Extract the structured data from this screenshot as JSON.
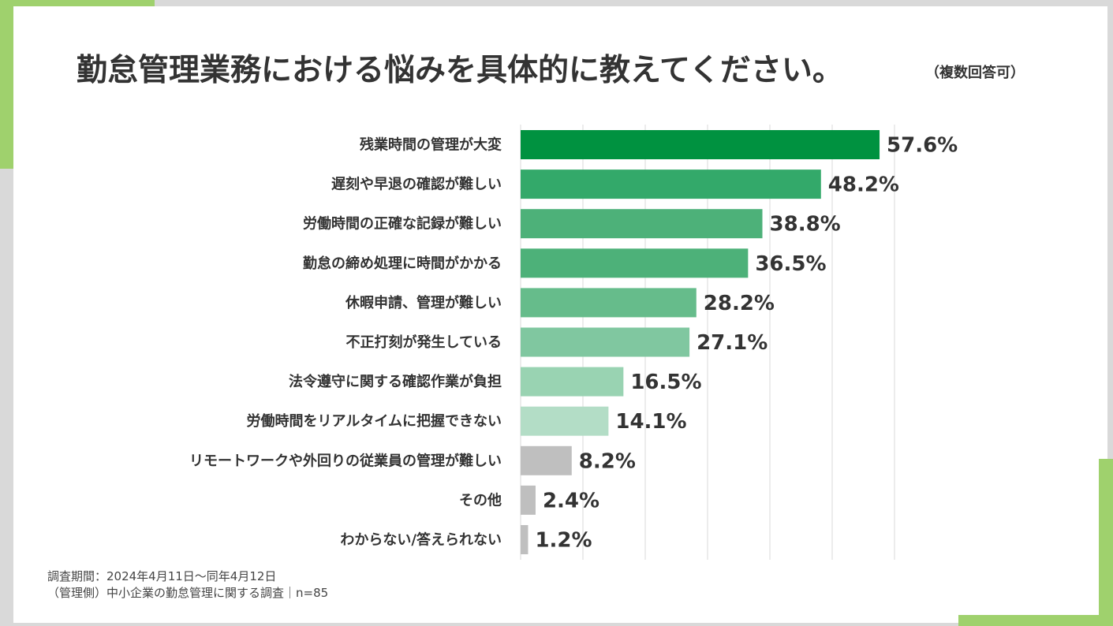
{
  "title": "勤怠管理業務における悩みを具体的に教えてください。",
  "subtitle": "（複数回答可）",
  "footnote": {
    "line1": "調査期間：2024年4月11日～同年4月12日",
    "line2": "（管理側）中小企業の勤怠管理に関する調査｜n=85"
  },
  "colors": {
    "accent": "#9fd16d",
    "bar_grey": "#bfbfbf",
    "bar_greens": [
      "#009240",
      "#33a96a",
      "#4db179",
      "#4db179",
      "#66bc8b",
      "#80c7a0",
      "#99d3b2",
      "#b3ddc6"
    ]
  },
  "chart_data": {
    "type": "bar",
    "orientation": "horizontal",
    "categories": [
      "残業時間の管理が大変",
      "遅刻や早退の確認が難しい",
      "労働時間の正確な記録が難しい",
      "勤怠の締め処理に時間がかかる",
      "休暇申請、管理が難しい",
      "不正打刻が発生している",
      "法令遵守に関する確認作業が負担",
      "労働時間をリアルタイムに把握できない",
      "リモートワークや外回りの従業員の管理が難しい",
      "その他",
      "わからない/答えられない"
    ],
    "values": [
      57.6,
      48.2,
      38.8,
      36.5,
      28.2,
      27.1,
      16.5,
      14.1,
      8.2,
      2.4,
      1.2
    ],
    "value_labels": [
      "57.6%",
      "48.2%",
      "38.8%",
      "36.5%",
      "28.2%",
      "27.1%",
      "16.5%",
      "14.1%",
      "8.2%",
      "2.4%",
      "1.2%"
    ],
    "xlim": [
      0,
      60
    ],
    "grid": true
  }
}
